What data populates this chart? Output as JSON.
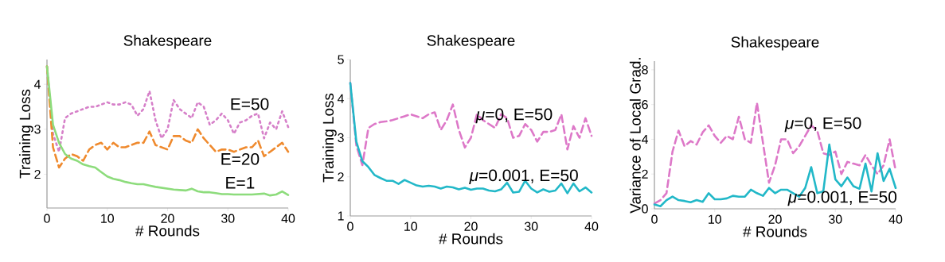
{
  "chart_data": [
    {
      "type": "line",
      "title": "Shakespeare",
      "xlabel": "# Rounds",
      "ylabel": "Training Loss",
      "x": [
        0,
        1,
        2,
        3,
        4,
        5,
        6,
        7,
        8,
        9,
        10,
        11,
        12,
        13,
        14,
        15,
        16,
        17,
        18,
        19,
        20,
        21,
        22,
        23,
        24,
        25,
        26,
        27,
        28,
        29,
        30,
        31,
        32,
        33,
        34,
        35,
        36,
        37,
        38,
        39,
        40
      ],
      "xlim": [
        0,
        40
      ],
      "xticks": [
        0,
        10,
        20,
        30,
        40
      ],
      "ylim": [
        1.25,
        4.55
      ],
      "yticks": [
        2,
        3,
        4
      ],
      "series": [
        {
          "name": "E=50",
          "color": "#d680c9",
          "line_style": "dotted",
          "values": [
            4.4,
            2.9,
            2.5,
            3.25,
            3.35,
            3.4,
            3.45,
            3.5,
            3.5,
            3.55,
            3.6,
            3.55,
            3.55,
            3.6,
            3.55,
            3.3,
            3.45,
            3.85,
            3.2,
            2.8,
            3.0,
            3.65,
            3.45,
            3.35,
            3.25,
            3.6,
            3.5,
            3.1,
            3.2,
            3.35,
            3.2,
            2.9,
            3.15,
            3.2,
            3.3,
            3.35,
            2.8,
            3.15,
            3.0,
            3.4,
            3.05
          ]
        },
        {
          "name": "E=20",
          "color": "#ef8a2e",
          "line_style": "dashed",
          "values": [
            4.4,
            2.6,
            2.15,
            2.35,
            2.45,
            2.4,
            2.3,
            2.55,
            2.65,
            2.7,
            2.55,
            2.7,
            2.6,
            2.6,
            2.65,
            2.7,
            2.7,
            2.95,
            2.65,
            2.6,
            2.55,
            2.85,
            2.85,
            2.75,
            2.7,
            3.0,
            2.8,
            2.65,
            2.5,
            2.55,
            2.55,
            2.5,
            2.55,
            2.6,
            2.6,
            2.75,
            2.4,
            2.5,
            2.6,
            2.7,
            2.5
          ]
        },
        {
          "name": "E=1",
          "color": "#8ddc7c",
          "line_style": "solid",
          "values": [
            4.4,
            3.1,
            2.7,
            2.45,
            2.35,
            2.3,
            2.22,
            2.18,
            2.15,
            2.05,
            1.95,
            1.9,
            1.87,
            1.83,
            1.8,
            1.78,
            1.78,
            1.75,
            1.72,
            1.7,
            1.68,
            1.66,
            1.65,
            1.64,
            1.68,
            1.62,
            1.6,
            1.6,
            1.58,
            1.56,
            1.56,
            1.55,
            1.55,
            1.55,
            1.55,
            1.56,
            1.57,
            1.53,
            1.55,
            1.62,
            1.54
          ]
        }
      ]
    },
    {
      "type": "line",
      "title": "Shakespeare",
      "xlabel": "# Rounds",
      "ylabel": "Training Loss",
      "x": [
        0,
        1,
        2,
        3,
        4,
        5,
        6,
        7,
        8,
        9,
        10,
        11,
        12,
        13,
        14,
        15,
        16,
        17,
        18,
        19,
        20,
        21,
        22,
        23,
        24,
        25,
        26,
        27,
        28,
        29,
        30,
        31,
        32,
        33,
        34,
        35,
        36,
        37,
        38,
        39,
        40
      ],
      "xlim": [
        0,
        40
      ],
      "xticks": [
        0,
        10,
        20,
        30,
        40
      ],
      "ylim": [
        1,
        5
      ],
      "yticks": [
        1,
        2,
        3,
        4,
        5
      ],
      "series": [
        {
          "name": "*μ*=0, E=50",
          "color": "#dd78c8",
          "line_style": "dashed",
          "values": [
            4.4,
            2.8,
            2.3,
            3.25,
            3.35,
            3.4,
            3.42,
            3.45,
            3.5,
            3.55,
            3.6,
            3.55,
            3.5,
            3.6,
            3.65,
            3.2,
            3.45,
            3.85,
            3.2,
            2.75,
            3.0,
            3.6,
            3.45,
            3.35,
            3.25,
            3.6,
            3.5,
            3.0,
            3.05,
            3.35,
            3.2,
            2.9,
            3.15,
            3.15,
            3.2,
            3.6,
            2.7,
            3.3,
            3.0,
            3.5,
            3.05
          ]
        },
        {
          "name": "*μ*=0.001, E=50",
          "color": "#22b8c8",
          "line_style": "solid",
          "values": [
            4.4,
            2.9,
            2.4,
            2.25,
            2.05,
            1.97,
            1.9,
            1.9,
            1.82,
            1.92,
            1.85,
            1.78,
            1.75,
            1.77,
            1.75,
            1.7,
            1.75,
            1.73,
            1.68,
            1.72,
            1.67,
            1.7,
            1.7,
            1.65,
            1.63,
            1.68,
            1.85,
            1.6,
            1.62,
            1.9,
            1.7,
            1.6,
            1.68,
            1.62,
            1.65,
            1.83,
            1.58,
            1.83,
            1.63,
            1.73,
            1.6
          ]
        }
      ]
    },
    {
      "type": "line",
      "title": "Shakespeare",
      "xlabel": "# Rounds",
      "ylabel": "Variance of Local Grad.",
      "x": [
        0,
        1,
        2,
        3,
        4,
        5,
        6,
        7,
        8,
        9,
        10,
        11,
        12,
        13,
        14,
        15,
        16,
        17,
        18,
        19,
        20,
        21,
        22,
        23,
        24,
        25,
        26,
        27,
        28,
        29,
        30,
        31,
        32,
        33,
        34,
        35,
        36,
        37,
        38,
        39,
        40
      ],
      "xlim": [
        0,
        40
      ],
      "xticks": [
        0,
        10,
        20,
        30,
        40
      ],
      "ylim": [
        0,
        8.5
      ],
      "yticks": [
        0,
        2,
        4,
        6,
        8
      ],
      "series": [
        {
          "name": "*μ*=0, E=50",
          "color": "#dd78c8",
          "line_style": "dashed",
          "values": [
            0.3,
            0.5,
            0.9,
            3.3,
            4.5,
            3.6,
            3.9,
            3.7,
            4.4,
            4.8,
            4.2,
            3.8,
            4.2,
            4.0,
            5.3,
            4.0,
            3.8,
            6.1,
            3.8,
            1.5,
            2.5,
            4.0,
            4.0,
            3.2,
            3.6,
            4.2,
            4.8,
            4.5,
            3.2,
            3.1,
            3.3,
            2.0,
            2.7,
            2.6,
            2.5,
            3.1,
            2.5,
            2.0,
            2.5,
            4.0,
            2.2
          ]
        },
        {
          "name": "*μ*=0.001, E=50",
          "color": "#22b8c8",
          "line_style": "solid",
          "values": [
            0.25,
            0.15,
            0.5,
            0.7,
            0.5,
            0.45,
            0.38,
            0.5,
            0.4,
            0.9,
            0.55,
            0.55,
            0.6,
            0.75,
            0.7,
            0.7,
            1.1,
            0.9,
            0.75,
            1.2,
            0.9,
            1.1,
            1.1,
            0.9,
            0.7,
            1.2,
            2.4,
            0.9,
            1.0,
            3.7,
            1.7,
            1.3,
            1.8,
            1.3,
            1.15,
            2.6,
            1.0,
            3.2,
            1.6,
            2.3,
            1.2
          ]
        }
      ]
    }
  ]
}
